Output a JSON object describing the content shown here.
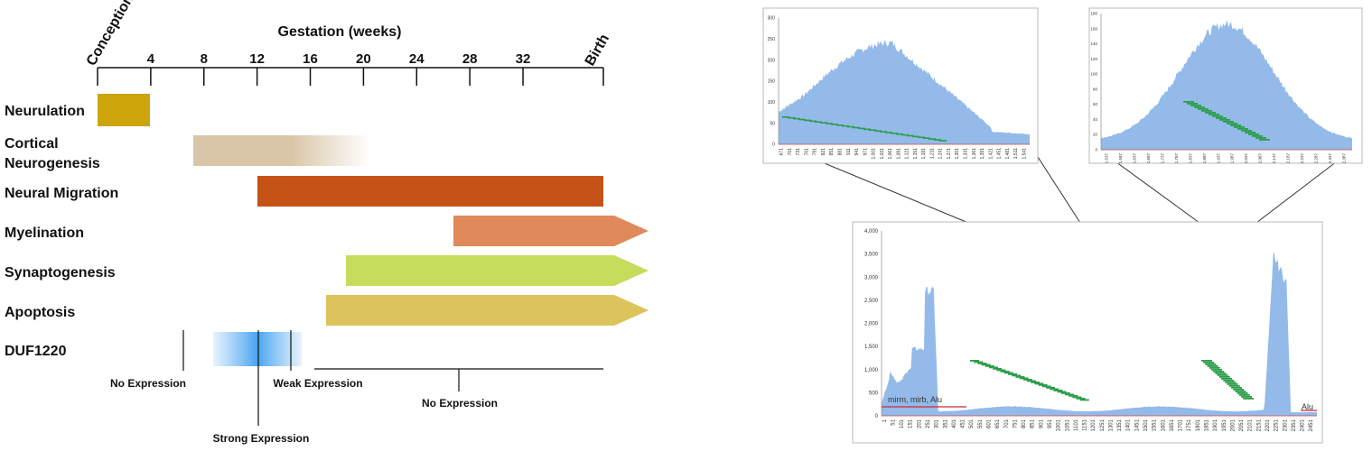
{
  "timeline": {
    "axis_title": "Gestation (weeks)",
    "start_label": "Conception",
    "end_label": "Birth",
    "ticks": [
      "4",
      "8",
      "12",
      "16",
      "20",
      "24",
      "28",
      "32"
    ],
    "processes": [
      {
        "label": "Neurulation",
        "color": "#cda40a"
      },
      {
        "label": "Cortical Neurogenesis",
        "label_lines": [
          "Cortical",
          "Neurogenesis"
        ],
        "color": "#d9c6a8"
      },
      {
        "label": "Neural Migration",
        "color": "#c55318"
      },
      {
        "label": "Myelination",
        "color": "#e0895a"
      },
      {
        "label": "Synaptogenesis",
        "color": "#c6dc5c"
      },
      {
        "label": "Apoptosis",
        "color": "#dcc35b"
      }
    ],
    "gene": {
      "label": "DUF1220",
      "color": "#5aaef0",
      "annotations": [
        "No Expression",
        "Strong Expression",
        "Weak Expression",
        "No Expression"
      ]
    }
  },
  "zoom_left": {
    "y_ticks": [
      "300",
      "250",
      "200",
      "150",
      "100",
      "50",
      "0"
    ],
    "x_ticks": [
      "671",
      "701",
      "731",
      "761",
      "791",
      "821",
      "851",
      "881",
      "911",
      "941",
      "971",
      "1,001",
      "1,031",
      "1,061",
      "1,091",
      "1,121",
      "1,151",
      "1,181",
      "1,211",
      "1,241",
      "1,271",
      "1,301",
      "1,331",
      "1,361",
      "1,391",
      "1,421",
      "1,451",
      "1,481",
      "1,511",
      "1,541"
    ]
  },
  "zoom_right": {
    "y_ticks": [
      "180",
      "160",
      "140",
      "120",
      "100",
      "80",
      "60",
      "40",
      "20",
      "0"
    ],
    "x_ticks": [
      "1,537",
      "1,587",
      "1,637",
      "1,687",
      "1,737",
      "1,787",
      "1,837",
      "1,887",
      "1,937",
      "1,987",
      "2,037",
      "2,087",
      "2,137",
      "2,187",
      "2,237",
      "2,287",
      "2,337",
      "2,387"
    ]
  },
  "zoom_main": {
    "y_ticks": [
      "4,000",
      "3,500",
      "3,000",
      "2,500",
      "2,000",
      "1,500",
      "1,000",
      "500",
      "0"
    ],
    "x_ticks": [
      "1",
      "51",
      "101",
      "151",
      "201",
      "251",
      "301",
      "351",
      "401",
      "451",
      "501",
      "551",
      "601",
      "651",
      "701",
      "751",
      "801",
      "851",
      "901",
      "951",
      "1001",
      "1051",
      "1101",
      "1151",
      "1201",
      "1251",
      "1301",
      "1351",
      "1401",
      "1451",
      "1501",
      "1551",
      "1601",
      "1651",
      "1701",
      "1751",
      "1801",
      "1851",
      "1901",
      "1951",
      "2001",
      "2051",
      "2101",
      "2151",
      "2201",
      "2251",
      "2301",
      "2351",
      "2401",
      "2451"
    ],
    "annotation_left": "mirm, mirb, Alu",
    "annotation_right": "Alu",
    "annotation_color": "#cc2b2b",
    "area_color": "#6fa3e2",
    "mark_color": "#2c9e4a"
  }
}
